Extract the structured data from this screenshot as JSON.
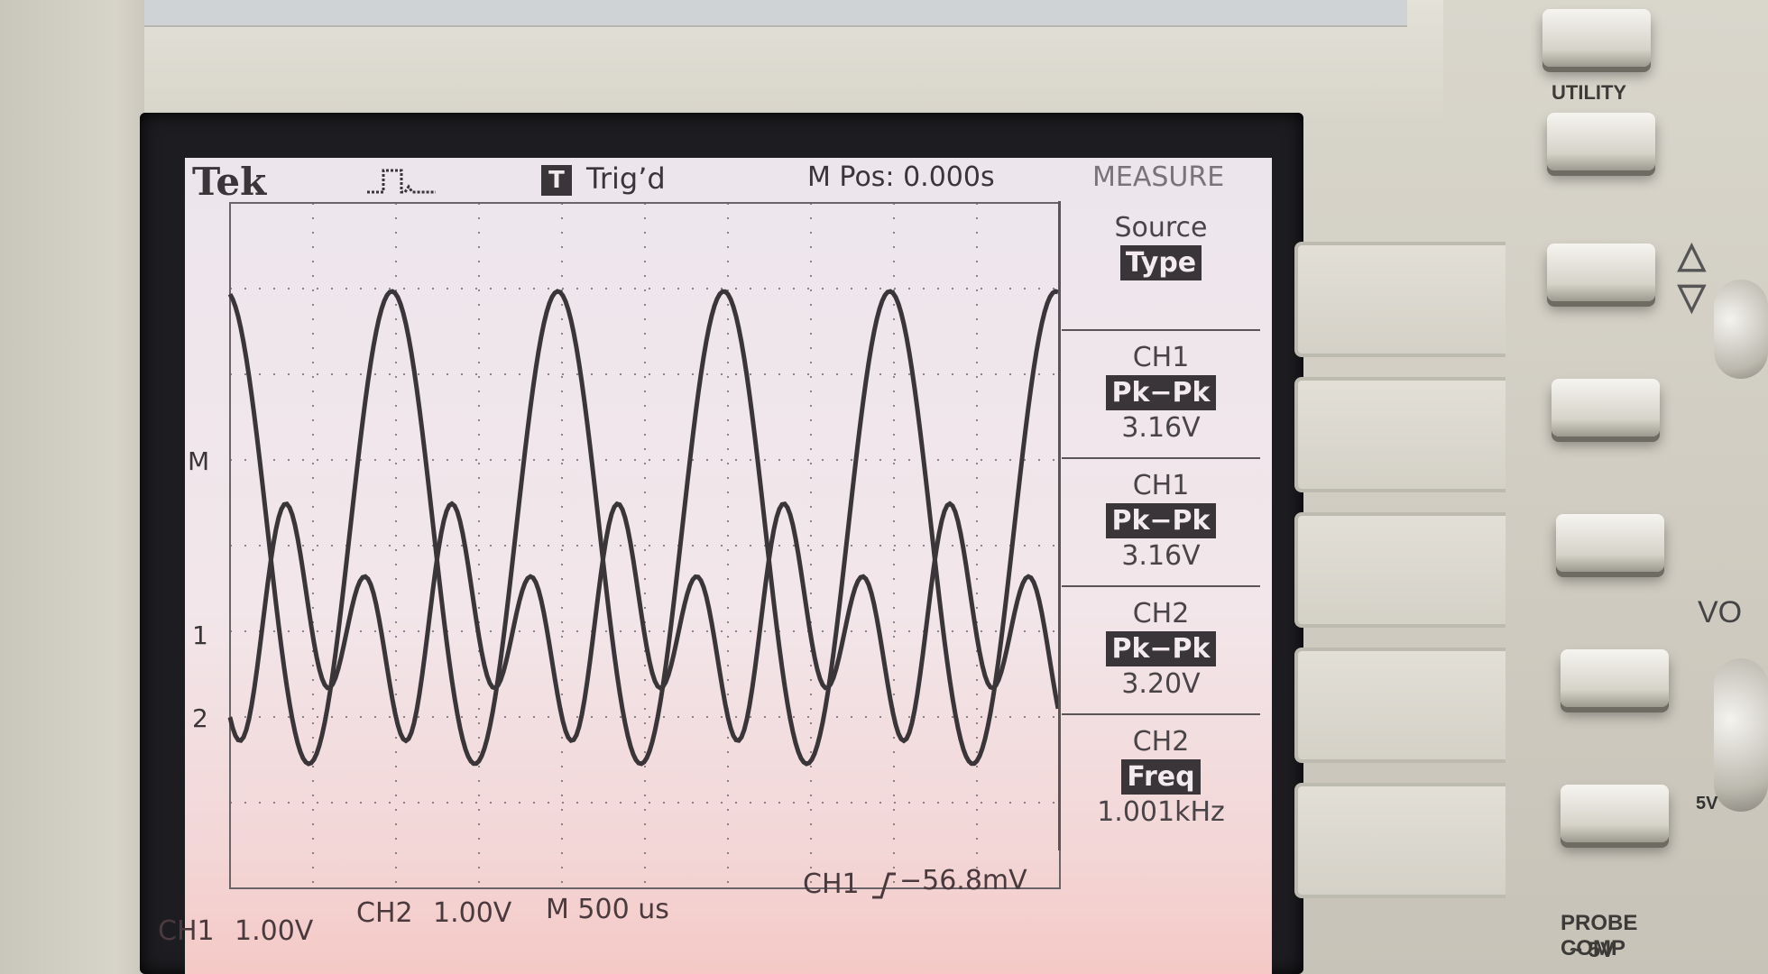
{
  "scope": {
    "brand": "Tek",
    "trigger_badge": "T",
    "trigger_status": "Trig’d",
    "main_position": "M Pos: 0.000s",
    "menu_title": "MEASURE"
  },
  "measure_menu": [
    {
      "label": "Source",
      "highlight": "Type",
      "value": ""
    },
    {
      "label": "CH1",
      "highlight": "Pk−Pk",
      "value": "3.16V"
    },
    {
      "label": "CH1",
      "highlight": "Pk−Pk",
      "value": "3.16V"
    },
    {
      "label": "CH2",
      "highlight": "Pk−Pk",
      "value": "3.20V"
    },
    {
      "label": "CH2",
      "highlight": "Freq",
      "value": "1.001kHz"
    }
  ],
  "markers": {
    "math": "M",
    "ch1": "1",
    "ch2": "2"
  },
  "status": {
    "ch1_label": "CH1",
    "ch1_scale": "1.00V",
    "ch2_label": "CH2",
    "ch2_scale": "1.00V",
    "timebase": "M 500 us",
    "trigger_source": "CH1",
    "trigger_level": "−56.8mV"
  },
  "panel": {
    "utility_label": "UTILITY",
    "probe_comp_label": "PROBE COMP",
    "probe_comp_value": "~ 5V",
    "partial_label_vo": "VO",
    "partial_label_5v": "5V"
  },
  "colors": {
    "trace": "#3a3538",
    "screen": "#efe6ea",
    "grid": "#6a6468"
  },
  "icons": [
    "acquire-pulse-icon",
    "trigger-icon",
    "trigger-slope-icon"
  ]
}
